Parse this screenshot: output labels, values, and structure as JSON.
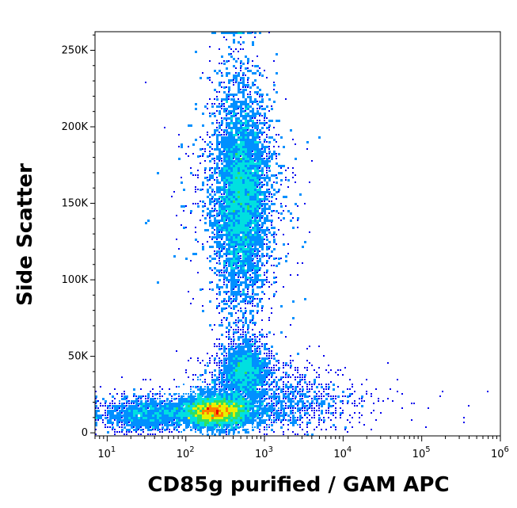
{
  "chart_data": {
    "type": "scatter",
    "subtype": "flow-cytometry-density-dot-plot",
    "title": "",
    "xlabel": "CD85g purified / GAM APC",
    "ylabel": "Side Scatter",
    "x_scale": "log",
    "y_scale": "linear",
    "xlim": [
      7,
      1000000
    ],
    "ylim": [
      -2000,
      262144
    ],
    "grid": false,
    "legend": "none",
    "x_ticks": [
      {
        "value": 10,
        "base": "10",
        "exp": "1"
      },
      {
        "value": 100,
        "base": "10",
        "exp": "2"
      },
      {
        "value": 1000,
        "base": "10",
        "exp": "3"
      },
      {
        "value": 10000,
        "base": "10",
        "exp": "4"
      },
      {
        "value": 100000,
        "base": "10",
        "exp": "5"
      },
      {
        "value": 1000000,
        "base": "10",
        "exp": "6"
      }
    ],
    "y_ticks": [
      {
        "value": 0,
        "label": "0"
      },
      {
        "value": 50000,
        "label": "50K"
      },
      {
        "value": 100000,
        "label": "100K"
      },
      {
        "value": 150000,
        "label": "150K"
      },
      {
        "value": 200000,
        "label": "200K"
      },
      {
        "value": 250000,
        "label": "250K"
      }
    ],
    "density_colormap": [
      "#0000ee",
      "#0090ff",
      "#00e0e0",
      "#30e060",
      "#e8f000",
      "#ff8000",
      "#ee0000"
    ],
    "populations": [
      {
        "x_median": 500,
        "y_median": 155000,
        "x_spread_decades": 0.16,
        "y_spread": 32000,
        "count": 9000,
        "peak_level": 3
      },
      {
        "x_median": 560,
        "y_median": 40000,
        "x_spread_decades": 0.14,
        "y_spread": 9000,
        "count": 2200,
        "peak_level": 3
      },
      {
        "x_median": 240,
        "y_median": 14000,
        "x_spread_decades": 0.2,
        "y_spread": 4500,
        "count": 6000,
        "peak_level": 6
      },
      {
        "x_median": 30,
        "y_median": 12000,
        "x_spread_decades": 0.25,
        "y_spread": 5000,
        "count": 1500,
        "peak_level": 2
      },
      {
        "x_median": 2000,
        "y_median": 20000,
        "x_spread_decades": 0.45,
        "y_spread": 10000,
        "count": 1000,
        "peak_level": 1
      }
    ]
  }
}
